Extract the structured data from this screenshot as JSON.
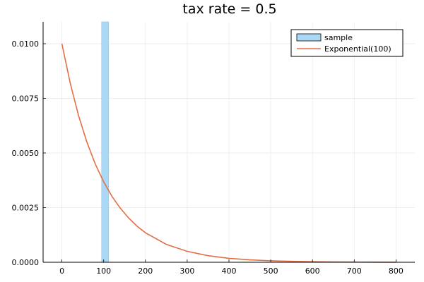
{
  "chart_data": {
    "type": "bar",
    "title": "tax rate = 0.5",
    "xlabel": "",
    "ylabel": "",
    "xlim": [
      -45,
      845
    ],
    "ylim": [
      0,
      0.011
    ],
    "x_ticks": [
      0,
      100,
      200,
      300,
      400,
      500,
      600,
      700,
      800
    ],
    "y_ticks": [
      0.0,
      0.0025,
      0.005,
      0.0075,
      0.01
    ],
    "y_tick_labels": [
      "0.0000",
      "0.0025",
      "0.0050",
      "0.0075",
      "0.0100"
    ],
    "grid": true,
    "legend_position": "top-right",
    "series": [
      {
        "name": "sample",
        "type": "histogram",
        "bins": [
          {
            "x0": 95,
            "x1": 112,
            "value": 0.011
          }
        ],
        "color": "#a9d9f7"
      },
      {
        "name": "Exponential(100)",
        "type": "line",
        "rate_label": "Exponential(100)",
        "x": [
          0,
          20,
          40,
          60,
          80,
          100,
          120,
          140,
          160,
          180,
          200,
          250,
          300,
          350,
          400,
          450,
          500,
          550,
          600,
          650,
          700,
          750,
          800
        ],
        "y": [
          0.01,
          0.00819,
          0.0067,
          0.00549,
          0.00449,
          0.00368,
          0.00301,
          0.00247,
          0.00202,
          0.00165,
          0.00135,
          0.00082,
          0.0005,
          0.0003,
          0.00018,
          0.00011,
          6.7e-05,
          4.1e-05,
          2.5e-05,
          1.5e-05,
          9.1e-06,
          5.5e-06,
          3.4e-06
        ],
        "color": "#e26f46"
      }
    ]
  }
}
